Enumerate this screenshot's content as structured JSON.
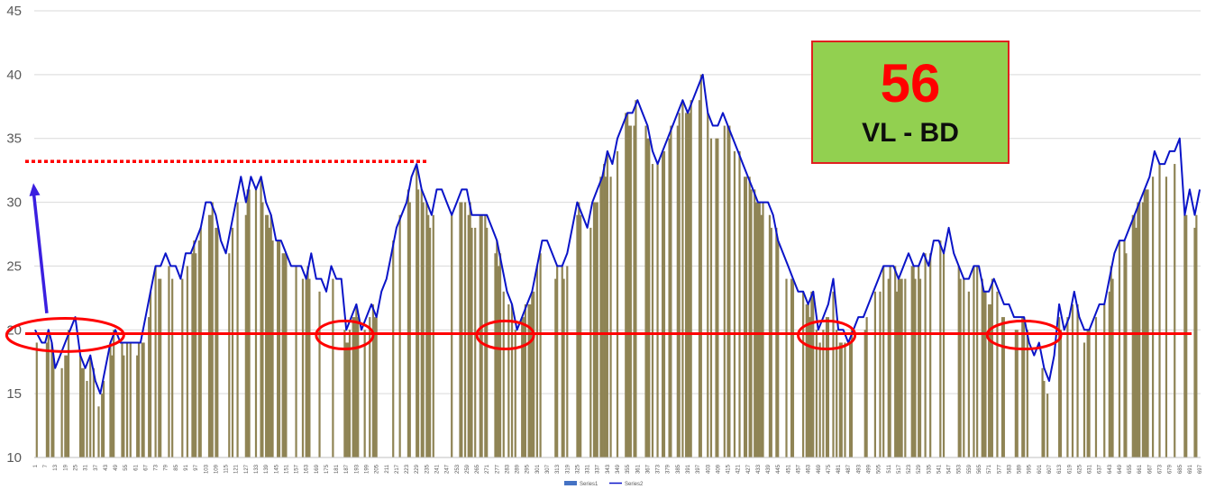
{
  "badge": {
    "number": "56",
    "label": "VL - BD"
  },
  "colors": {
    "bars": "#8f8455",
    "line": "#0a14c8",
    "threshold": "#ff0000",
    "ref_dotted": "#ff0000",
    "arrow": "#3b1fe0",
    "badge_bg": "#92d050",
    "badge_border": "#e0201f"
  },
  "chart_data": {
    "type": "bar",
    "ylim": [
      10,
      45
    ],
    "yticks": [
      10,
      15,
      20,
      25,
      30,
      35,
      40,
      45
    ],
    "grid": true,
    "legend_position": "bottom",
    "x_count": 697,
    "x_tick_start": 1,
    "x_tick_step": 6,
    "series": [
      {
        "name": "Series1",
        "kind": "bar"
      },
      {
        "name": "Series2",
        "kind": "line",
        "points": [
          [
            1,
            20
          ],
          [
            5,
            19
          ],
          [
            7,
            19
          ],
          [
            9,
            20
          ],
          [
            11,
            19
          ],
          [
            13,
            17
          ],
          [
            16,
            18
          ],
          [
            19,
            19
          ],
          [
            22,
            20
          ],
          [
            25,
            21
          ],
          [
            28,
            18
          ],
          [
            31,
            17
          ],
          [
            34,
            18
          ],
          [
            37,
            16
          ],
          [
            40,
            15
          ],
          [
            43,
            17
          ],
          [
            46,
            19
          ],
          [
            49,
            20
          ],
          [
            52,
            19
          ],
          [
            55,
            19
          ],
          [
            58,
            19
          ],
          [
            61,
            19
          ],
          [
            64,
            19
          ],
          [
            67,
            21
          ],
          [
            70,
            23
          ],
          [
            73,
            25
          ],
          [
            76,
            25
          ],
          [
            79,
            26
          ],
          [
            82,
            25
          ],
          [
            85,
            25
          ],
          [
            88,
            24
          ],
          [
            91,
            26
          ],
          [
            94,
            26
          ],
          [
            97,
            27
          ],
          [
            100,
            28
          ],
          [
            103,
            30
          ],
          [
            106,
            30
          ],
          [
            109,
            29
          ],
          [
            112,
            27
          ],
          [
            115,
            26
          ],
          [
            118,
            28
          ],
          [
            121,
            30
          ],
          [
            124,
            32
          ],
          [
            127,
            30
          ],
          [
            130,
            32
          ],
          [
            133,
            31
          ],
          [
            136,
            32
          ],
          [
            139,
            30
          ],
          [
            142,
            29
          ],
          [
            145,
            27
          ],
          [
            148,
            27
          ],
          [
            151,
            26
          ],
          [
            154,
            25
          ],
          [
            157,
            25
          ],
          [
            160,
            25
          ],
          [
            163,
            24
          ],
          [
            166,
            26
          ],
          [
            169,
            24
          ],
          [
            172,
            24
          ],
          [
            175,
            23
          ],
          [
            178,
            25
          ],
          [
            181,
            24
          ],
          [
            184,
            24
          ],
          [
            187,
            20
          ],
          [
            190,
            21
          ],
          [
            193,
            22
          ],
          [
            196,
            20
          ],
          [
            199,
            21
          ],
          [
            202,
            22
          ],
          [
            205,
            21
          ],
          [
            208,
            23
          ],
          [
            211,
            24
          ],
          [
            214,
            26
          ],
          [
            217,
            28
          ],
          [
            220,
            29
          ],
          [
            223,
            30
          ],
          [
            226,
            32
          ],
          [
            229,
            33
          ],
          [
            232,
            31
          ],
          [
            235,
            30
          ],
          [
            238,
            29
          ],
          [
            241,
            31
          ],
          [
            244,
            31
          ],
          [
            247,
            30
          ],
          [
            250,
            29
          ],
          [
            253,
            30
          ],
          [
            256,
            31
          ],
          [
            259,
            31
          ],
          [
            262,
            29
          ],
          [
            265,
            29
          ],
          [
            268,
            29
          ],
          [
            271,
            29
          ],
          [
            274,
            28
          ],
          [
            277,
            27
          ],
          [
            280,
            25
          ],
          [
            283,
            23
          ],
          [
            286,
            22
          ],
          [
            289,
            20
          ],
          [
            292,
            21
          ],
          [
            295,
            22
          ],
          [
            298,
            23
          ],
          [
            301,
            25
          ],
          [
            304,
            27
          ],
          [
            307,
            27
          ],
          [
            310,
            26
          ],
          [
            313,
            25
          ],
          [
            316,
            25
          ],
          [
            319,
            26
          ],
          [
            322,
            28
          ],
          [
            325,
            30
          ],
          [
            328,
            29
          ],
          [
            331,
            28
          ],
          [
            334,
            30
          ],
          [
            337,
            31
          ],
          [
            340,
            32
          ],
          [
            343,
            34
          ],
          [
            346,
            33
          ],
          [
            349,
            35
          ],
          [
            352,
            36
          ],
          [
            355,
            37
          ],
          [
            358,
            37
          ],
          [
            361,
            38
          ],
          [
            364,
            37
          ],
          [
            367,
            36
          ],
          [
            370,
            34
          ],
          [
            373,
            33
          ],
          [
            376,
            34
          ],
          [
            379,
            35
          ],
          [
            382,
            36
          ],
          [
            385,
            37
          ],
          [
            388,
            38
          ],
          [
            391,
            37
          ],
          [
            394,
            38
          ],
          [
            397,
            39
          ],
          [
            400,
            40
          ],
          [
            403,
            37
          ],
          [
            406,
            36
          ],
          [
            409,
            36
          ],
          [
            412,
            37
          ],
          [
            415,
            36
          ],
          [
            418,
            35
          ],
          [
            421,
            34
          ],
          [
            424,
            33
          ],
          [
            427,
            32
          ],
          [
            430,
            31
          ],
          [
            433,
            30
          ],
          [
            436,
            30
          ],
          [
            439,
            30
          ],
          [
            442,
            29
          ],
          [
            445,
            27
          ],
          [
            448,
            26
          ],
          [
            451,
            25
          ],
          [
            454,
            24
          ],
          [
            457,
            23
          ],
          [
            460,
            23
          ],
          [
            463,
            22
          ],
          [
            466,
            23
          ],
          [
            469,
            20
          ],
          [
            472,
            21
          ],
          [
            475,
            22
          ],
          [
            478,
            24
          ],
          [
            481,
            20
          ],
          [
            484,
            20
          ],
          [
            487,
            19
          ],
          [
            490,
            20
          ],
          [
            493,
            21
          ],
          [
            496,
            21
          ],
          [
            499,
            22
          ],
          [
            502,
            23
          ],
          [
            505,
            24
          ],
          [
            508,
            25
          ],
          [
            511,
            25
          ],
          [
            514,
            25
          ],
          [
            517,
            24
          ],
          [
            520,
            25
          ],
          [
            523,
            26
          ],
          [
            526,
            25
          ],
          [
            529,
            25
          ],
          [
            532,
            26
          ],
          [
            535,
            25
          ],
          [
            538,
            27
          ],
          [
            541,
            27
          ],
          [
            544,
            26
          ],
          [
            547,
            28
          ],
          [
            550,
            26
          ],
          [
            553,
            25
          ],
          [
            556,
            24
          ],
          [
            559,
            24
          ],
          [
            562,
            25
          ],
          [
            565,
            25
          ],
          [
            568,
            23
          ],
          [
            571,
            23
          ],
          [
            574,
            24
          ],
          [
            577,
            23
          ],
          [
            580,
            22
          ],
          [
            583,
            22
          ],
          [
            586,
            21
          ],
          [
            589,
            21
          ],
          [
            592,
            21
          ],
          [
            595,
            19
          ],
          [
            598,
            18
          ],
          [
            601,
            19
          ],
          [
            604,
            17
          ],
          [
            607,
            16
          ],
          [
            610,
            18
          ],
          [
            613,
            22
          ],
          [
            616,
            20
          ],
          [
            619,
            21
          ],
          [
            622,
            23
          ],
          [
            625,
            21
          ],
          [
            628,
            20
          ],
          [
            631,
            20
          ],
          [
            634,
            21
          ],
          [
            637,
            22
          ],
          [
            640,
            22
          ],
          [
            643,
            24
          ],
          [
            646,
            26
          ],
          [
            649,
            27
          ],
          [
            652,
            27
          ],
          [
            655,
            28
          ],
          [
            658,
            29
          ],
          [
            661,
            30
          ],
          [
            664,
            31
          ],
          [
            667,
            32
          ],
          [
            670,
            34
          ],
          [
            673,
            33
          ],
          [
            676,
            33
          ],
          [
            679,
            34
          ],
          [
            682,
            34
          ],
          [
            685,
            35
          ],
          [
            688,
            29
          ],
          [
            691,
            31
          ],
          [
            694,
            29
          ],
          [
            697,
            31
          ]
        ]
      }
    ]
  },
  "annotations": {
    "threshold_y": 19.7,
    "dotted_ref_y": 33.2,
    "dotted_ref_x_end": 236,
    "arrow": {
      "from": [
        8,
        21.3
      ],
      "to": [
        0,
        31.5
      ]
    },
    "ellipses": [
      {
        "cx": 19,
        "cy": 19.6,
        "rx": 35,
        "ry": 1.3
      },
      {
        "cx": 186,
        "cy": 19.6,
        "rx": 17,
        "ry": 1.1
      },
      {
        "cx": 282,
        "cy": 19.6,
        "rx": 17,
        "ry": 1.1
      },
      {
        "cx": 474,
        "cy": 19.6,
        "rx": 17,
        "ry": 1.1
      },
      {
        "cx": 592,
        "cy": 19.6,
        "rx": 22,
        "ry": 1.1
      }
    ]
  }
}
